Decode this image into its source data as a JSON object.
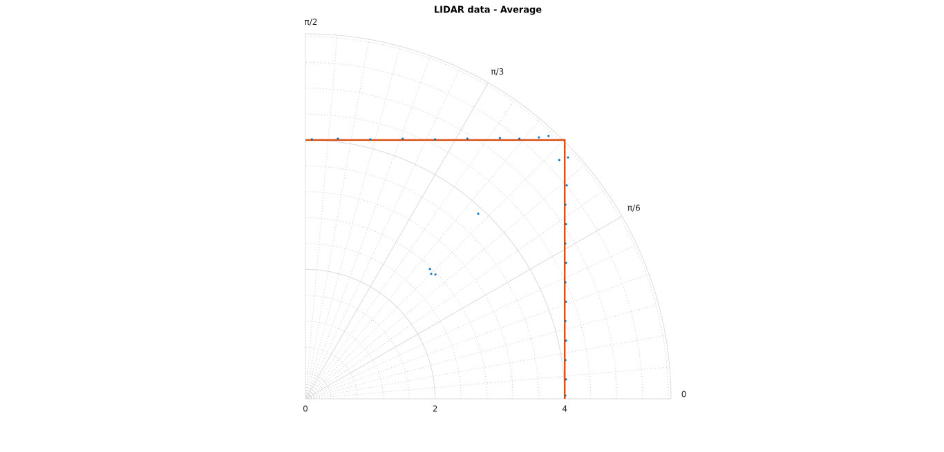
{
  "chart_data": {
    "type": "polar",
    "title": "LIDAR data - Average",
    "rlim": [
      0,
      5.64
    ],
    "rticks": [
      0,
      2,
      4
    ],
    "thetalim": [
      0,
      1.5708
    ],
    "thetaticks": [
      0,
      {
        "value": 0.5236,
        "label": "π/6"
      },
      {
        "value": 1.0472,
        "label": "π/3"
      },
      {
        "value": 1.5708,
        "label": "π/2"
      }
    ],
    "grid": true,
    "minor_grid": true,
    "scatter": {
      "color": "#0072bd",
      "theta": [
        0.0125,
        0.0745,
        0.1485,
        0.2203,
        0.2909,
        0.3572,
        0.4222,
        0.4814,
        0.5394,
        0.5915,
        0.6424,
        0.6859,
        0.7442,
        0.7558,
        1.5459,
        1.447,
        1.3264,
        1.2136,
        1.1081,
        1.0148,
        0.9309,
        0.8834,
        0.8427,
        0.8252,
        0.8206,
        0.8071,
        0.7828,
        0.7637
      ],
      "r": [
        4.01,
        4.031,
        4.0547,
        4.1195,
        4.1857,
        4.2908,
        4.3955,
        4.5355,
        4.6733,
        4.8426,
        5.008,
        5.2087,
        5.5059,
        5.38,
        4.0112,
        4.051,
        4.1328,
        4.2908,
        4.4811,
        4.734,
        5.024,
        5.201,
        5.4112,
        5.5269,
        3.91,
        2.776,
        2.738,
        2.776
      ]
    },
    "line": {
      "color": "#d95319",
      "theta": [
        0,
        0.7854,
        1.5708
      ],
      "r": [
        4,
        5.657,
        4
      ]
    }
  }
}
